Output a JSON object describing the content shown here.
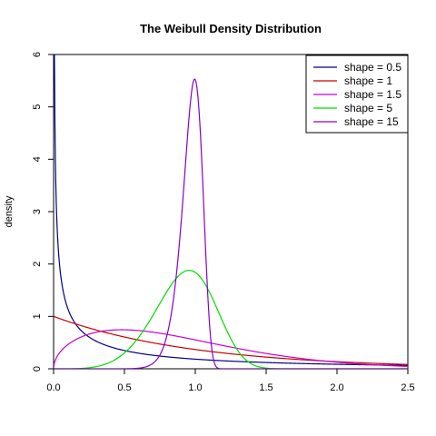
{
  "chart_data": {
    "type": "line",
    "title": "The Weibull Density Distribution",
    "xlabel": "",
    "ylabel": "density",
    "xlim": [
      0,
      2.5
    ],
    "ylim": [
      0,
      6
    ],
    "x_ticks": [
      "0.0",
      "0.5",
      "1.0",
      "1.5",
      "2.0",
      "2.5"
    ],
    "y_ticks": [
      "0",
      "1",
      "2",
      "3",
      "4",
      "5",
      "6"
    ],
    "legend_position": "top-right",
    "grid": false,
    "series": [
      {
        "name": "shape = 0.5",
        "color": "#00008B",
        "function": "weibull",
        "shape": 0.5
      },
      {
        "name": "shape = 1",
        "color": "#CC0000",
        "function": "weibull",
        "shape": 1
      },
      {
        "name": "shape = 1.5",
        "color": "#CC00CC",
        "function": "weibull",
        "shape": 1.5
      },
      {
        "name": "shape = 5",
        "color": "#00DD00",
        "function": "weibull",
        "shape": 5
      },
      {
        "name": "shape = 15",
        "color": "#8800CC",
        "function": "weibull",
        "shape": 15
      }
    ]
  }
}
